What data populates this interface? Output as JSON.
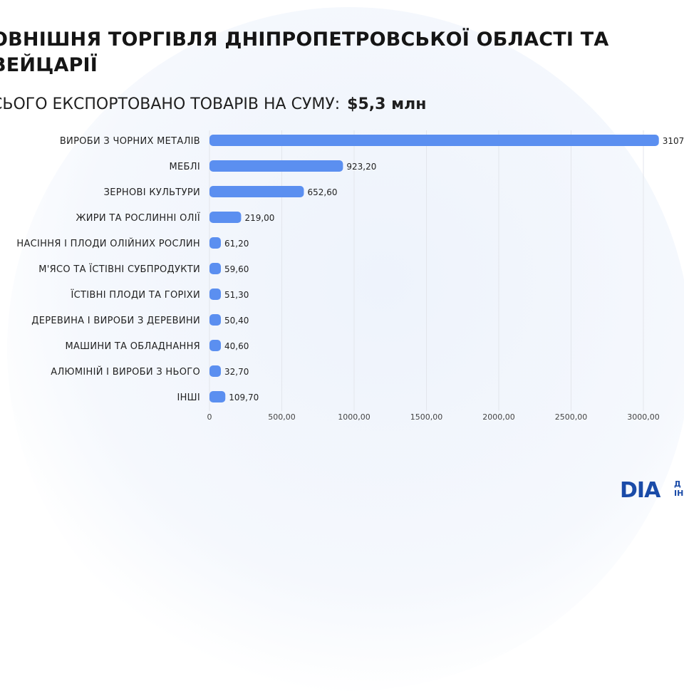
{
  "header": {
    "title": "ОВНІШНЯ ТОРГІВЛЯ ДНІПРОПЕТРОВСЬКОЇ ОБЛАСТІ ТА ВЕЙЦАРІЇ",
    "subtitle_prefix": "СЬОГО ЕКСПОРТОВАНО ТОВАРІВ НА СУМУ:",
    "subtitle_amount": "$5,3 млн"
  },
  "logo": {
    "mark": "DIA",
    "line1": "Д",
    "line2": "ІН"
  },
  "colors": {
    "bar": "#5b8ff0",
    "grid": "#e3e6ec",
    "logo": "#1a4ba8"
  },
  "chart_data": {
    "type": "bar",
    "orientation": "horizontal",
    "categories": [
      "ВИРОБИ З ЧОРНИХ МЕТАЛІВ",
      "МЕБЛІ",
      "ЗЕРНОВІ КУЛЬТУРИ",
      "ЖИРИ ТА РОСЛИННІ ОЛІЇ",
      "НАСІННЯ І ПЛОДИ ОЛІЙНИХ РОСЛИН",
      "М'ЯСО ТА ЇСТІВНІ СУБПРОДУКТИ",
      "ЇСТІВНІ ПЛОДИ ТА ГОРІХИ",
      "ДЕРЕВИНА І ВИРОБИ З ДЕРЕВИНИ",
      "МАШИНИ ТА ОБЛАДНАННЯ",
      "АЛЮМІНІЙ І ВИРОБИ З НЬОГО",
      "ІНШІ"
    ],
    "values": [
      3107,
      923.2,
      652.6,
      219.0,
      61.2,
      59.6,
      51.3,
      50.4,
      40.6,
      32.7,
      109.7
    ],
    "value_labels": [
      "3107",
      "923,20",
      "652,60",
      "219,00",
      "61,20",
      "59,60",
      "51,30",
      "50,40",
      "40,60",
      "32,70",
      "109,70"
    ],
    "xlim": [
      0,
      3000
    ],
    "xticks": [
      0,
      500,
      1000,
      1500,
      2000,
      2500,
      3000
    ],
    "xtick_labels": [
      "0",
      "500,00",
      "1000,00",
      "1500,00",
      "2000,00",
      "2500,00",
      "3000,00"
    ],
    "grid": true,
    "title": "",
    "xlabel": "",
    "ylabel": ""
  }
}
